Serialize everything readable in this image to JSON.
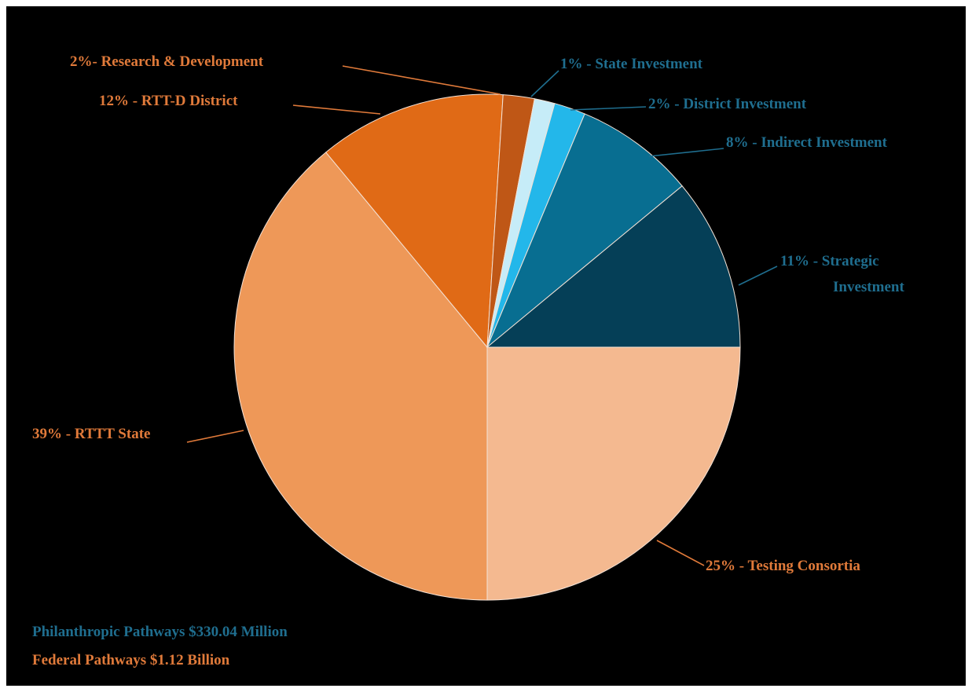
{
  "chart_data": {
    "type": "pie",
    "title": "",
    "slices": [
      {
        "label": "25% - Testing Consortia",
        "value": 25,
        "color": "#f4b990",
        "label_color": "#e07a3a"
      },
      {
        "label": "39% - RTTT State",
        "value": 39,
        "color": "#ee9858",
        "label_color": "#e07a3a"
      },
      {
        "label": "12% - RTT-D District",
        "value": 12,
        "color": "#e06a16",
        "label_color": "#e07a3a"
      },
      {
        "label": "2%- Research & Development",
        "value": 2,
        "color": "#bf5716",
        "label_color": "#e07a3a"
      },
      {
        "label": "1% - State Investment",
        "value": 1.3,
        "color": "#c6ecf8",
        "label_color": "#1f6e8f"
      },
      {
        "label": "2% - District Investment",
        "value": 2,
        "color": "#23b7ea",
        "label_color": "#1f6e8f"
      },
      {
        "label": "8% - Indirect Investment",
        "value": 7.7,
        "color": "#086e91",
        "label_color": "#1f6e8f"
      },
      {
        "label": "11% - Strategic Investment",
        "value": 11,
        "color": "#053f57",
        "label_color": "#1f6e8f"
      }
    ]
  },
  "footer": {
    "philanthropic": "Philanthropic Pathways $330.04 Million",
    "federal": "Federal Pathways $1.12 Billion"
  },
  "colors": {
    "orange_text": "#e07a3a",
    "blue_text": "#1f6e8f",
    "background": "#000000"
  }
}
